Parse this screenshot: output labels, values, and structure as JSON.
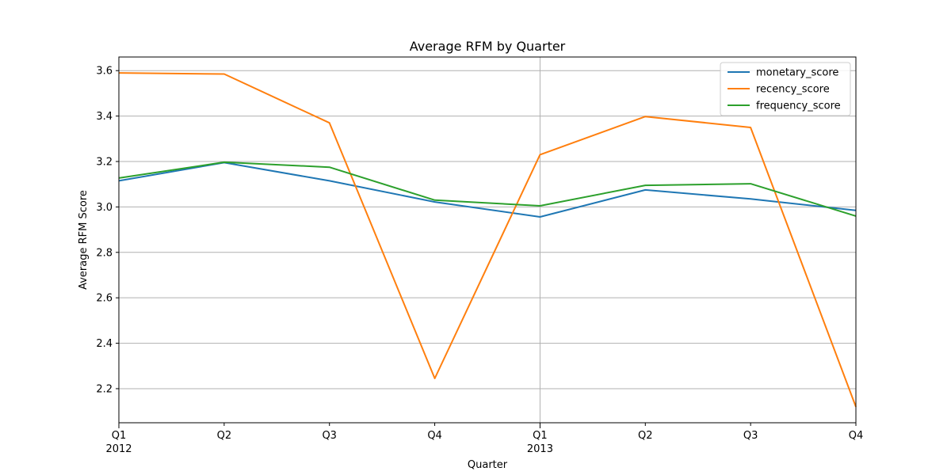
{
  "chart_data": {
    "type": "line",
    "title": "Average RFM by Quarter",
    "xlabel": "Quarter",
    "ylabel": "Average RFM Score",
    "x": [
      "2012Q1",
      "2012Q2",
      "2012Q3",
      "2012Q4",
      "2013Q1",
      "2013Q2",
      "2013Q3",
      "2013Q4"
    ],
    "x_tick_labels": [
      {
        "quarter": "Q1",
        "year": "2012"
      },
      {
        "quarter": "Q2",
        "year": ""
      },
      {
        "quarter": "Q3",
        "year": ""
      },
      {
        "quarter": "Q4",
        "year": ""
      },
      {
        "quarter": "Q1",
        "year": "2013"
      },
      {
        "quarter": "Q2",
        "year": ""
      },
      {
        "quarter": "Q3",
        "year": ""
      },
      {
        "quarter": "Q4",
        "year": ""
      }
    ],
    "ylim": [
      2.05,
      3.66
    ],
    "yticks": [
      2.2,
      2.4,
      2.6,
      2.8,
      3.0,
      3.2,
      3.4,
      3.6
    ],
    "ytick_labels": [
      "2.2",
      "2.4",
      "2.6",
      "2.8",
      "3.0",
      "3.2",
      "3.4",
      "3.6"
    ],
    "grid": true,
    "legend_position": "top-right",
    "series": [
      {
        "name": "monetary_score",
        "color": "#1f77b4",
        "values": [
          3.115,
          3.195,
          3.115,
          3.022,
          2.956,
          3.075,
          3.035,
          2.985
        ]
      },
      {
        "name": "recency_score",
        "color": "#ff7f0e",
        "values": [
          3.59,
          3.585,
          3.37,
          2.245,
          3.23,
          3.398,
          3.35,
          2.12
        ]
      },
      {
        "name": "frequency_score",
        "color": "#2ca02c",
        "values": [
          3.127,
          3.197,
          3.175,
          3.03,
          3.005,
          3.095,
          3.102,
          2.96
        ]
      }
    ]
  }
}
